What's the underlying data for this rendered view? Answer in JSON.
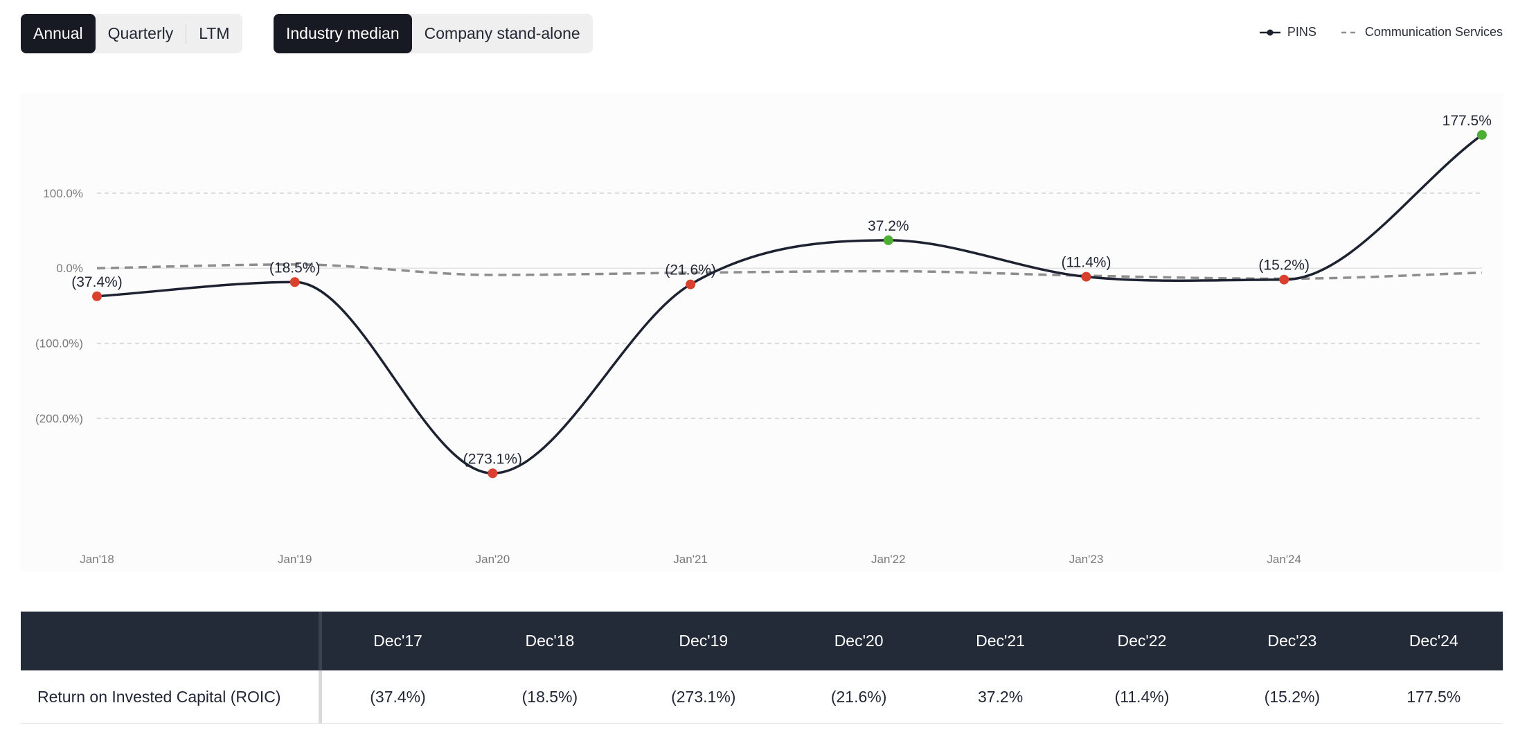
{
  "period_toggle": {
    "options": [
      "Annual",
      "Quarterly",
      "LTM"
    ],
    "selected": "Annual"
  },
  "comparison_toggle": {
    "options": [
      "Industry median",
      "Company stand-alone"
    ],
    "selected": "Industry median"
  },
  "legend": {
    "company": "PINS",
    "industry": "Communication Services"
  },
  "colors": {
    "line": "#1c2230",
    "industry_line": "#8e8e8e",
    "negative": "#d9412e",
    "positive": "#4cae34",
    "header_bg": "#232a38"
  },
  "chart_data": {
    "type": "line",
    "title": "",
    "xlabel": "",
    "ylabel": "",
    "x_tick_labels": [
      "Jan'18",
      "Jan'19",
      "Jan'20",
      "Jan'21",
      "Jan'22",
      "Jan'23",
      "Jan'24"
    ],
    "y_ticks": [
      100,
      0,
      -100,
      -200
    ],
    "y_tick_labels": [
      "100.0%",
      "0.0%",
      "(100.0%)",
      "(200.0%)"
    ],
    "ylim": [
      -330,
      205
    ],
    "series": [
      {
        "name": "PINS",
        "x": [
          0,
          1,
          2,
          3,
          4,
          5,
          6,
          7
        ],
        "values": [
          -37.4,
          -18.5,
          -273.1,
          -21.6,
          37.2,
          -11.4,
          -15.2,
          177.5
        ],
        "labels": [
          "(37.4%)",
          "(18.5%)",
          "(273.1%)",
          "(21.6%)",
          "37.2%",
          "(11.4%)",
          "(15.2%)",
          "177.5%"
        ]
      },
      {
        "name": "Communication Services",
        "x": [
          0,
          1,
          2,
          3,
          4,
          5,
          6,
          7
        ],
        "values": [
          0,
          5,
          -9,
          -6,
          -4,
          -10,
          -14,
          -6
        ],
        "style": "dashed"
      }
    ]
  },
  "table": {
    "columns": [
      "Dec'17",
      "Dec'18",
      "Dec'19",
      "Dec'20",
      "Dec'21",
      "Dec'22",
      "Dec'23",
      "Dec'24"
    ],
    "rows": [
      {
        "label": "Return on Invested Capital (ROIC)",
        "values": [
          "(37.4%)",
          "(18.5%)",
          "(273.1%)",
          "(21.6%)",
          "37.2%",
          "(11.4%)",
          "(15.2%)",
          "177.5%"
        ]
      }
    ]
  }
}
